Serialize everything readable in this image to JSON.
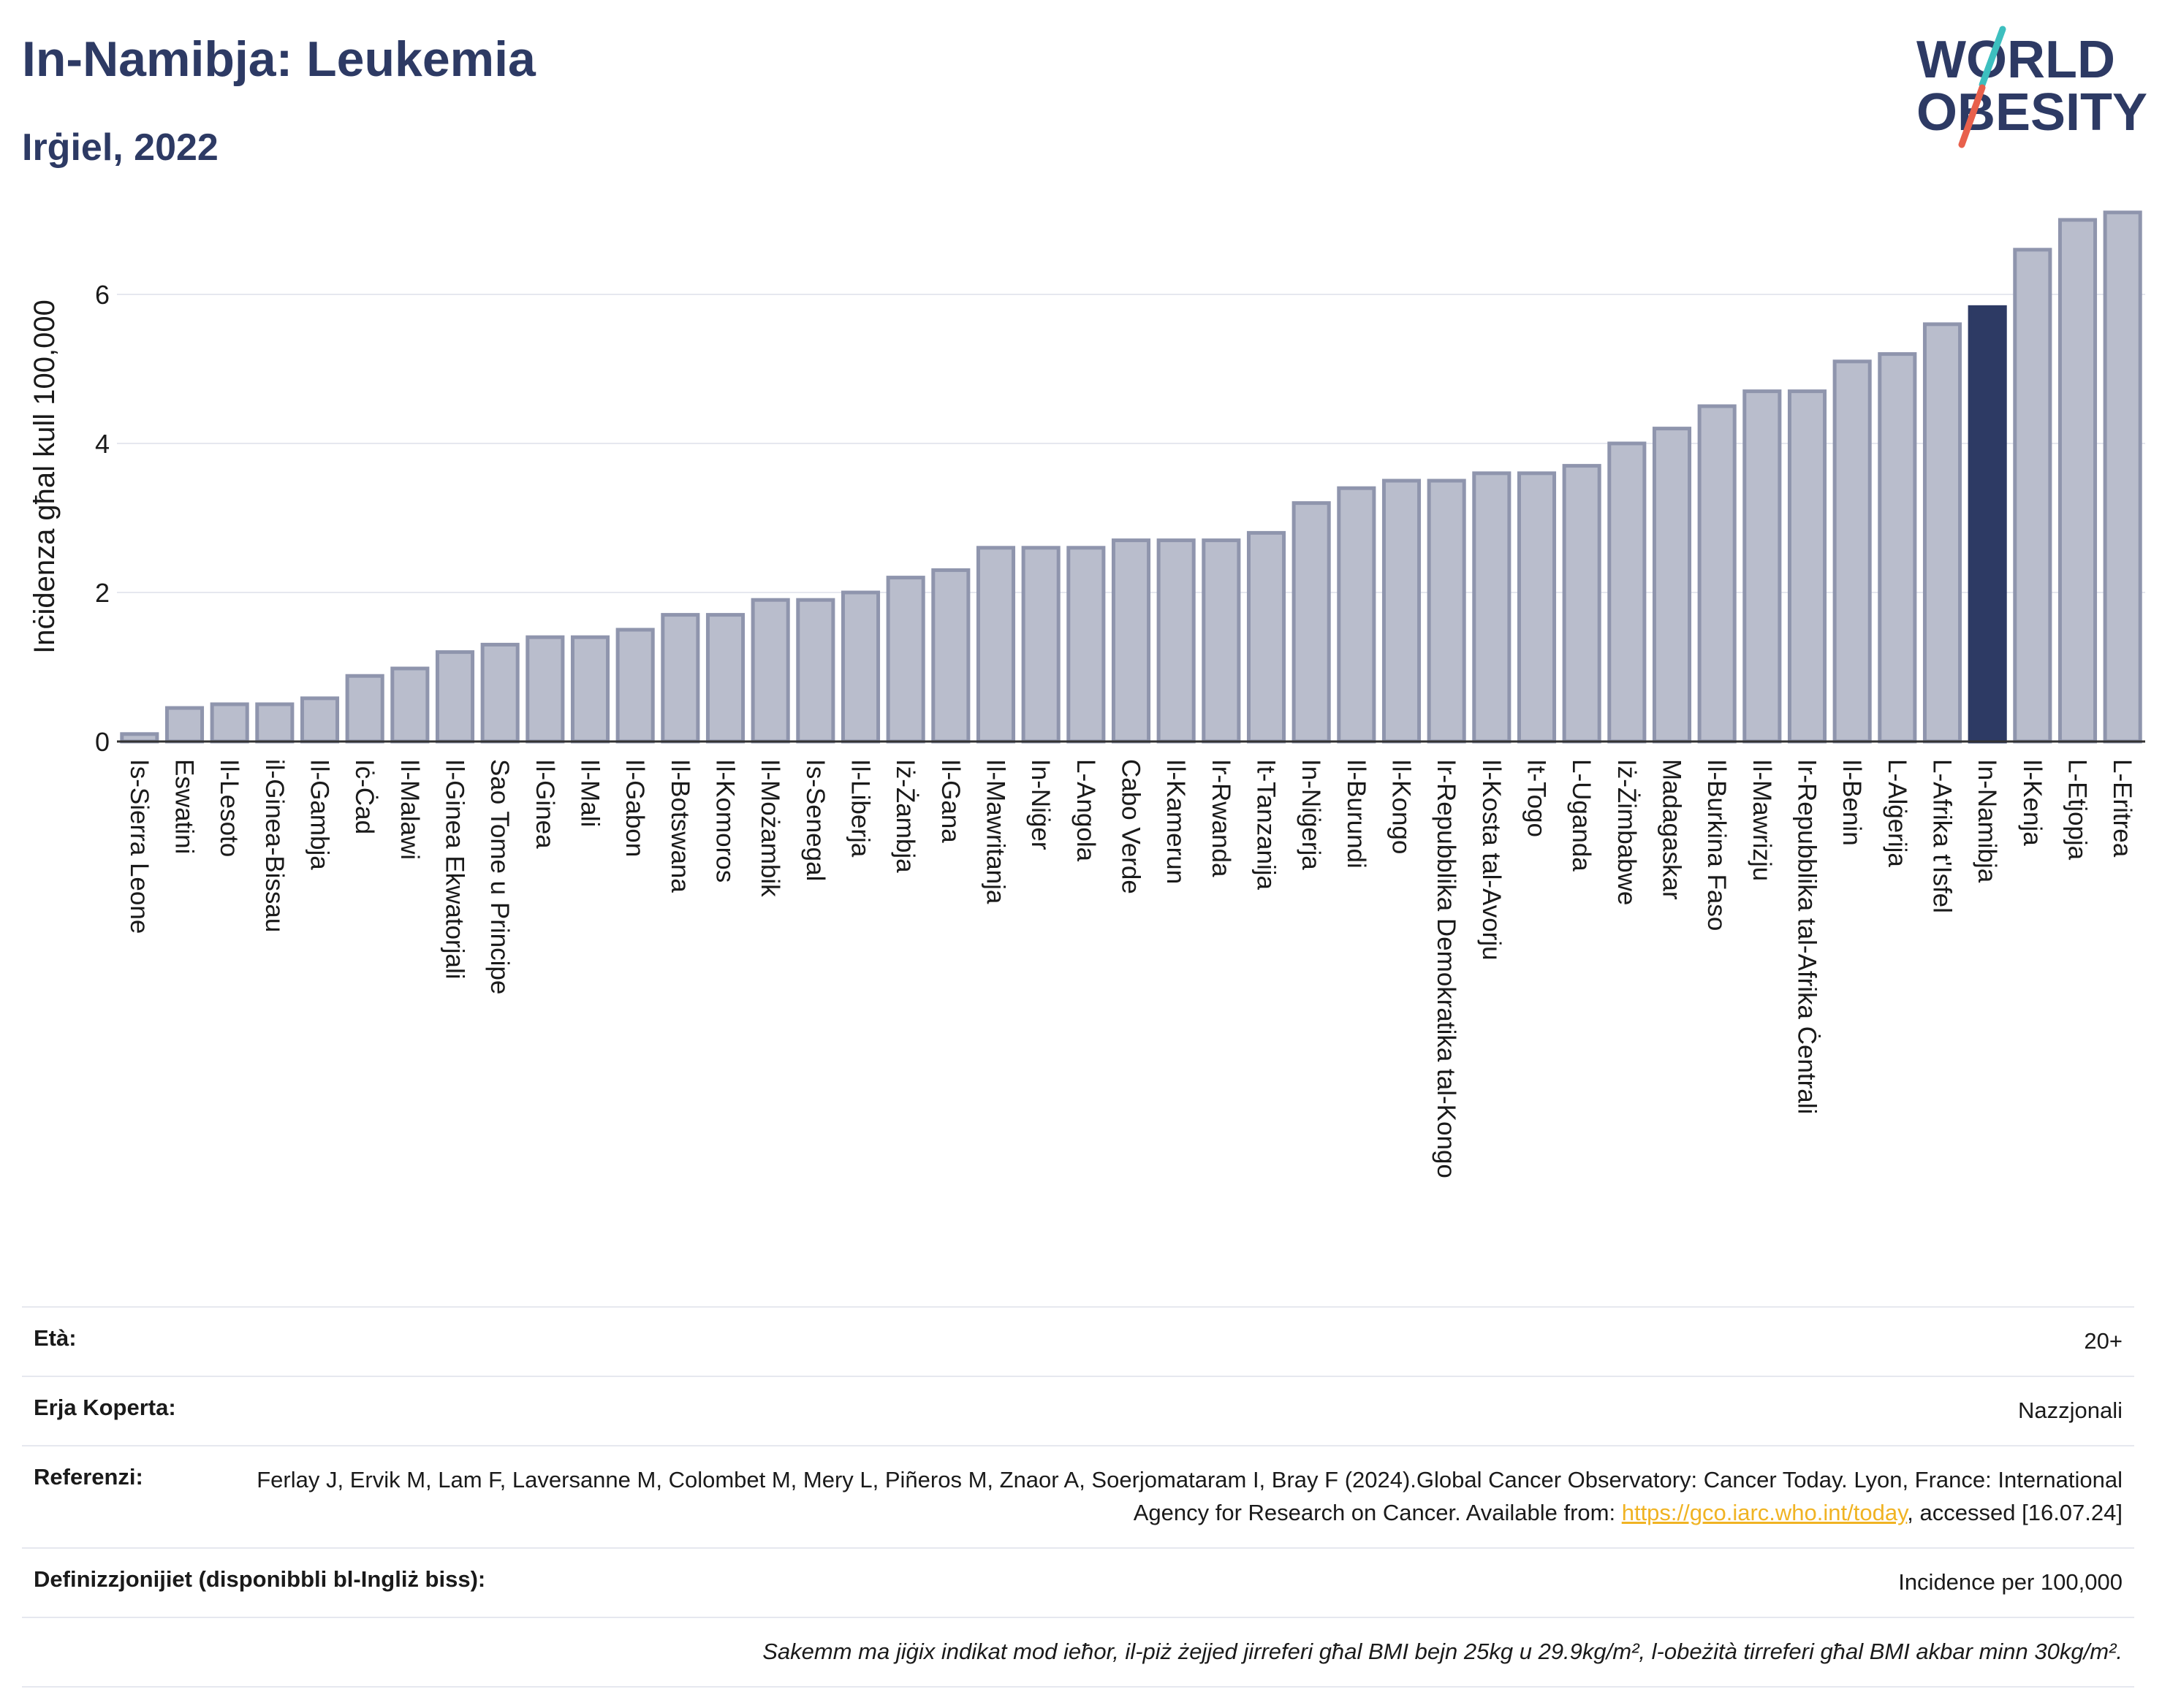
{
  "header": {
    "title": "In-Namibja: Leukemia",
    "subtitle": "Irġiel, 2022"
  },
  "logo": {
    "line1": "WORLD",
    "line2": "OBESITY",
    "colors": {
      "text": "#2d3a64",
      "slash_teal": "#3dbfbf",
      "slash_red": "#e8604c"
    }
  },
  "colors": {
    "bar_default": "#b9bdcc",
    "bar_default_stroke": "#8f95ad",
    "bar_highlight": "#2d3a64",
    "grid": "#e6e8ef",
    "axis": "#333333"
  },
  "chart_data": {
    "type": "bar",
    "ylabel": "Inċidenza għal kull 100,000",
    "ylim": [
      0,
      7.5
    ],
    "yticks": [
      0,
      2,
      4,
      6
    ],
    "grid": true,
    "highlight": "In-Namibja",
    "categories": [
      "Is-Sierra Leone",
      "Eswatini",
      "Il-Lesoto",
      "il-Ginea-Bissau",
      "Il-Gambja",
      "Iċ-Ċad",
      "Il-Malawi",
      "Il-Ginea Ekwatorjali",
      "Sao Tome u Principe",
      "Il-Ginea",
      "Il-Mali",
      "Il-Gabon",
      "Il-Botswana",
      "Il-Komoros",
      "Il-Możambik",
      "Is-Senegal",
      "Il-Liberja",
      "Iż-Żambja",
      "Il-Gana",
      "Il-Mawritanja",
      "In-Niġer",
      "L-Angola",
      "Cabo Verde",
      "Il-Kamerun",
      "Ir-Rwanda",
      "It-Tanzanija",
      "In-Niġerja",
      "Il-Burundi",
      "Il-Kongo",
      "Ir-Repubblika Demokratika tal-Kongo",
      "Il-Kosta tal-Avorju",
      "It-Togo",
      "L-Uganda",
      "Iż-Żimbabwe",
      "Madagaskar",
      "Il-Burkina Faso",
      "Il-Mawrizju",
      "Ir-Repubblika tal-Afrika Ċentrali",
      "Il-Benin",
      "L-Alġerija",
      "L-Afrika t'Isfel",
      "In-Namibja",
      "Il-Kenja",
      "L-Etjopja",
      "L-Eritrea"
    ],
    "values": [
      0.1,
      0.45,
      0.5,
      0.5,
      0.58,
      0.88,
      0.98,
      1.2,
      1.3,
      1.4,
      1.4,
      1.5,
      1.7,
      1.7,
      1.9,
      1.9,
      2.0,
      2.2,
      2.3,
      2.6,
      2.6,
      2.6,
      2.7,
      2.7,
      2.7,
      2.8,
      3.2,
      3.4,
      3.5,
      3.5,
      3.6,
      3.6,
      3.7,
      4.0,
      4.2,
      4.5,
      4.7,
      4.7,
      5.1,
      5.2,
      5.6,
      5.83,
      6.6,
      7.0,
      7.1
    ]
  },
  "info": {
    "age": {
      "label": "Età:",
      "value": "20+"
    },
    "area": {
      "label": "Erja Koperta:",
      "value": "Nazzjonali"
    },
    "references": {
      "label": "Referenzi:",
      "text1": "Ferlay J, Ervik M, Lam F, Laversanne M, Colombet M, Mery L, Piñeros M, Znaor A, Soerjomataram I, Bray F (2024).Global Cancer Observatory: Cancer Today. Lyon, France: International Agency for Research on Cancer. Available from: ",
      "link": "https://gco.iarc.who.int/today",
      "text2": ", accessed [16.07.24]"
    },
    "definitions": {
      "label": "Definizzjonijiet (disponibbli bl-Ingliż biss):",
      "value": "Incidence per 100,000"
    },
    "note": "Sakemm ma jiġix indikat mod ieħor, il-piż żejjed jirreferi għal BMI bejn 25kg u 29.9kg/m², l-obeżità tirreferi għal BMI akbar minn 30kg/m²."
  }
}
